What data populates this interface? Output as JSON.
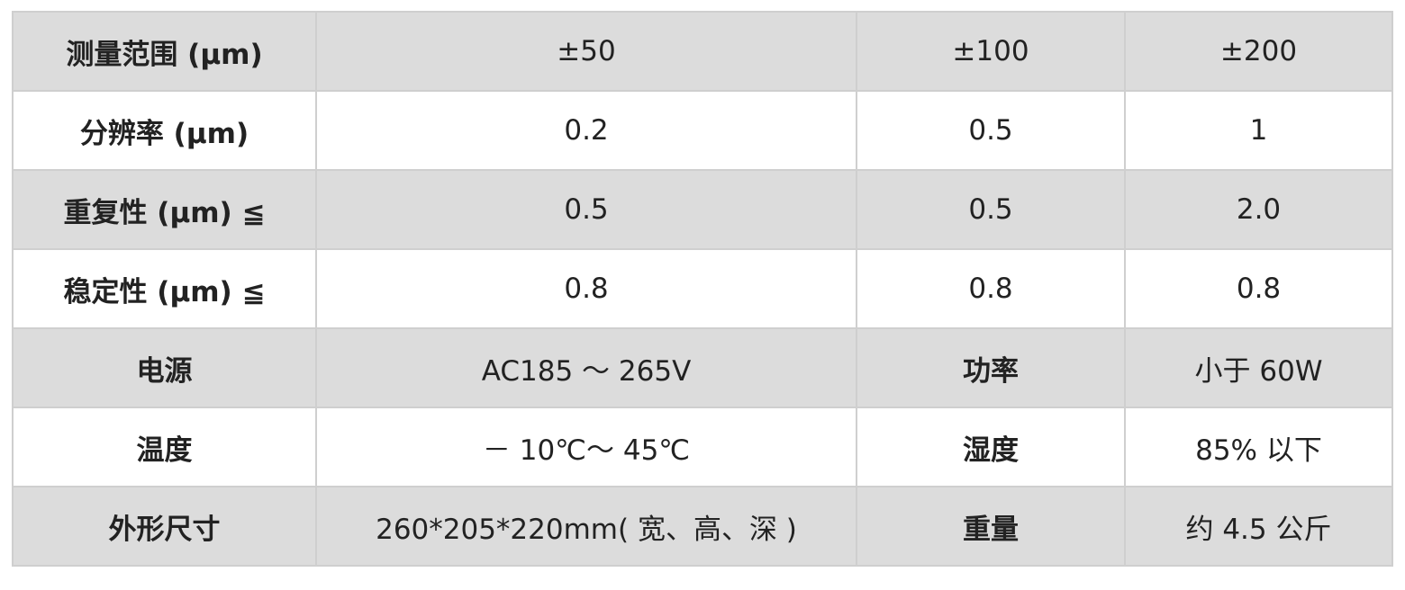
{
  "rows": [
    [
      "测量范围 (µm)",
      "±50",
      "±100",
      "±200"
    ],
    [
      "分辨率 (µm)",
      "0.2",
      "0.5",
      "1"
    ],
    [
      "重复性 (µm) ≦",
      "0.5",
      "0.5",
      "2.0"
    ],
    [
      "稳定性 (µm) ≦",
      "0.8",
      "0.8",
      "0.8"
    ],
    [
      "电源",
      "AC185 ～ 265V",
      "功率",
      "小于 60W"
    ],
    [
      "温度",
      "－ 10℃～ 45℃",
      "湿度",
      "85% 以下"
    ],
    [
      "外形尺寸",
      "260*205*220mm( 宽、高、深 )",
      "重量",
      "约 4.5 公斤"
    ]
  ],
  "colors": {
    "row_shade": "#dcdcdc",
    "border": "#cfcfcf",
    "text": "#222222"
  }
}
